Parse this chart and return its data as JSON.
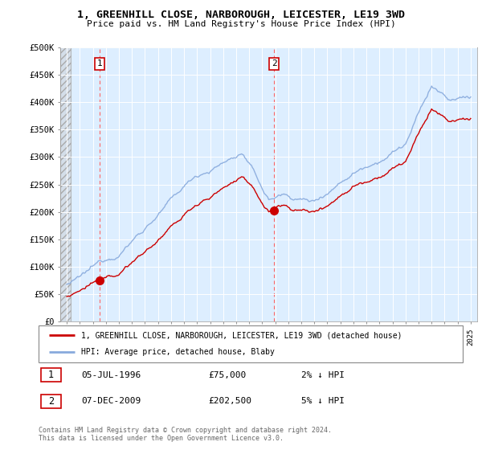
{
  "title1": "1, GREENHILL CLOSE, NARBOROUGH, LEICESTER, LE19 3WD",
  "title2": "Price paid vs. HM Land Registry's House Price Index (HPI)",
  "yticks": [
    0,
    50000,
    100000,
    150000,
    200000,
    250000,
    300000,
    350000,
    400000,
    450000,
    500000
  ],
  "ytick_labels": [
    "£0",
    "£50K",
    "£100K",
    "£150K",
    "£200K",
    "£250K",
    "£300K",
    "£350K",
    "£400K",
    "£450K",
    "£500K"
  ],
  "xlim_start": 1993.5,
  "xlim_end": 2025.5,
  "ylim_min": 0,
  "ylim_max": 500000,
  "sale1_x": 1996.5,
  "sale1_y": 75000,
  "sale1_label": "1",
  "sale2_x": 2009.92,
  "sale2_y": 202500,
  "sale2_label": "2",
  "hpi_color": "#88aadd",
  "price_color": "#cc0000",
  "grid_color": "#cccccc",
  "bg_color": "#ddeeff",
  "legend_line1": "1, GREENHILL CLOSE, NARBOROUGH, LEICESTER, LE19 3WD (detached house)",
  "legend_line2": "HPI: Average price, detached house, Blaby",
  "annot1_date": "05-JUL-1996",
  "annot1_price": "£75,000",
  "annot1_hpi": "2% ↓ HPI",
  "annot2_date": "07-DEC-2009",
  "annot2_price": "£202,500",
  "annot2_hpi": "5% ↓ HPI",
  "footer": "Contains HM Land Registry data © Crown copyright and database right 2024.\nThis data is licensed under the Open Government Licence v3.0."
}
